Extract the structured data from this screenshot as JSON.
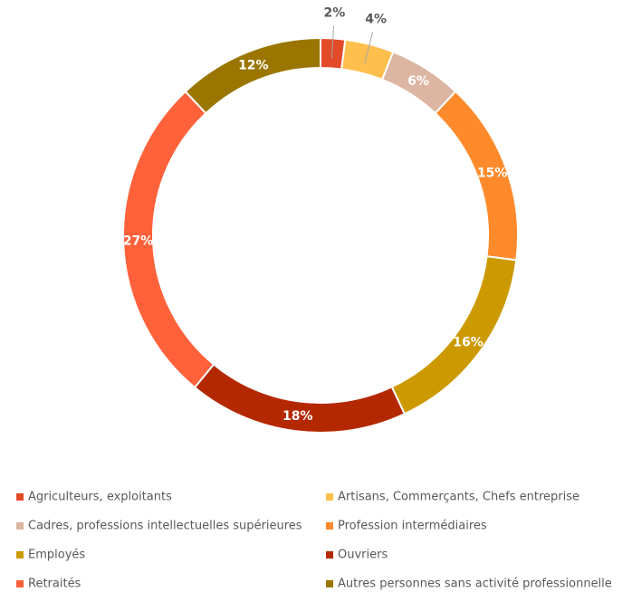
{
  "chart_data": {
    "type": "donut",
    "categories": [
      "Agriculteurs, exploitants",
      "Artisans, Commerçants, Chefs entreprise",
      "Cadres, professions intellectuelles supérieures",
      "Profession intermédiaires",
      "Employés",
      "Ouvriers",
      "Retraités",
      "Autres personnes sans activité professionnelle"
    ],
    "values": [
      2,
      4,
      6,
      15,
      16,
      18,
      27,
      12
    ],
    "value_labels": [
      "2%",
      "4%",
      "6%",
      "15%",
      "16%",
      "18%",
      "27%",
      "12%"
    ],
    "colors": [
      "#e24a28",
      "#ffbf4d",
      "#dcb6a2",
      "#ff8a2b",
      "#cc9a00",
      "#b42800",
      "#ff613a",
      "#9a7600"
    ],
    "legend": "bottom"
  }
}
